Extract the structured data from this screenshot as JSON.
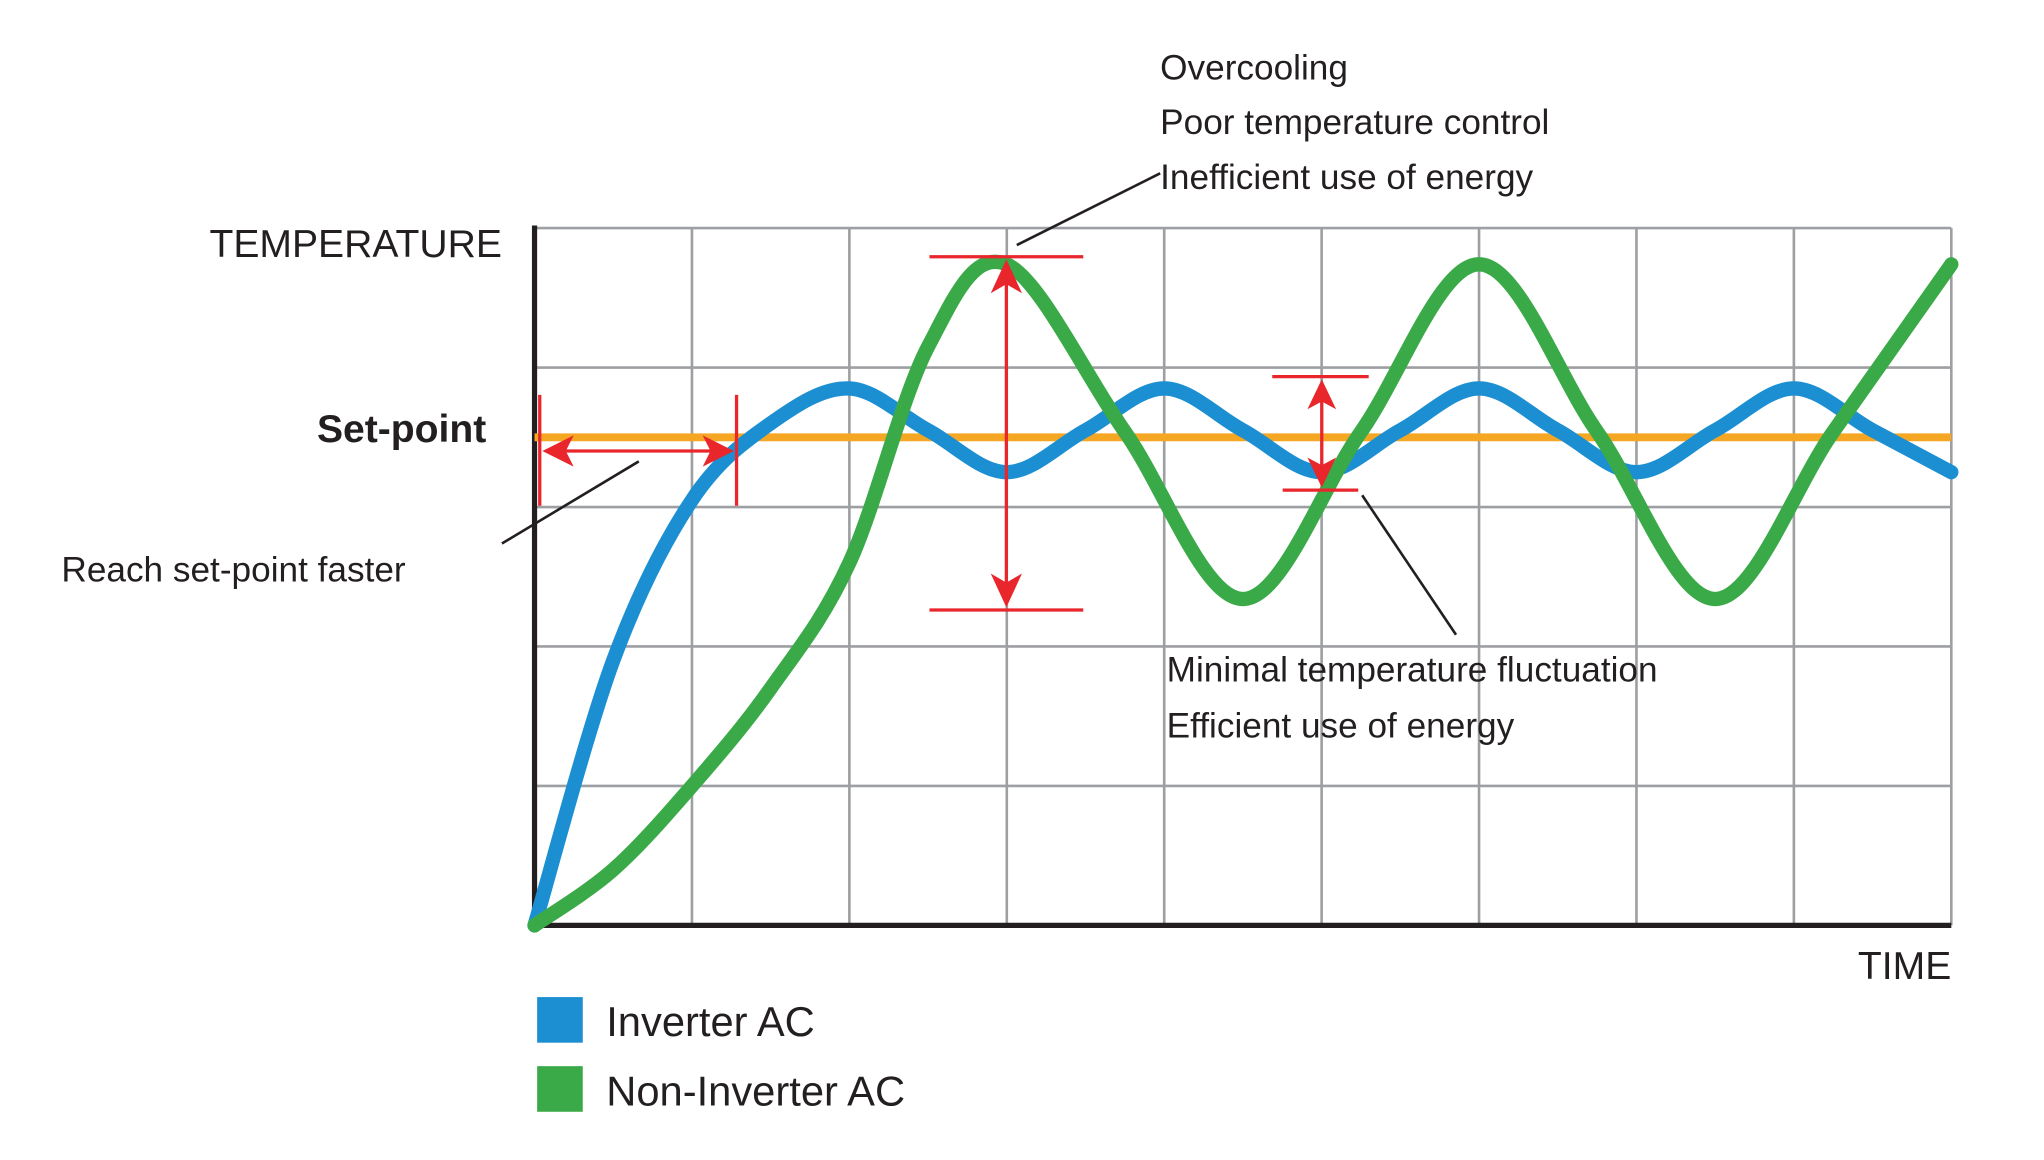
{
  "chart_data": {
    "type": "line",
    "title": "",
    "xlabel": "TIME",
    "ylabel": "TEMPERATURE",
    "xlim": [
      0,
      9
    ],
    "ylim": [
      0,
      5
    ],
    "grid": true,
    "setpoint": {
      "label": "Set-point",
      "value": 3.5,
      "color": "#f5a623"
    },
    "series": [
      {
        "name": "Inverter AC",
        "color": "#1b8fd2",
        "points": [
          [
            0,
            0
          ],
          [
            0.5,
            1.9
          ],
          [
            1,
            3.05
          ],
          [
            1.5,
            3.6
          ],
          [
            2,
            3.85
          ],
          [
            2.5,
            3.55
          ],
          [
            3,
            3.25
          ],
          [
            3.5,
            3.55
          ],
          [
            4,
            3.85
          ],
          [
            4.5,
            3.55
          ],
          [
            5,
            3.25
          ],
          [
            5.5,
            3.55
          ],
          [
            6,
            3.85
          ],
          [
            6.5,
            3.55
          ],
          [
            7,
            3.25
          ],
          [
            7.5,
            3.55
          ],
          [
            8,
            3.85
          ],
          [
            8.5,
            3.55
          ],
          [
            9,
            3.25
          ]
        ]
      },
      {
        "name": "Non-Inverter AC",
        "color": "#3aaa48",
        "points": [
          [
            0,
            0
          ],
          [
            0.5,
            0.4
          ],
          [
            1,
            1.0
          ],
          [
            1.5,
            1.7
          ],
          [
            2,
            2.6
          ],
          [
            2.5,
            4.15
          ],
          [
            3,
            4.74
          ],
          [
            3.75,
            3.54
          ],
          [
            4.5,
            2.34
          ],
          [
            5.25,
            3.54
          ],
          [
            6,
            4.74
          ],
          [
            6.75,
            3.54
          ],
          [
            7.5,
            2.34
          ],
          [
            8.25,
            3.54
          ],
          [
            9,
            4.74
          ]
        ]
      }
    ],
    "annotations": [
      {
        "id": "overcooling",
        "lines": [
          "Overcooling",
          "Poor temperature control",
          "Inefficient use of energy"
        ]
      },
      {
        "id": "faster",
        "lines": [
          "Reach set-point faster"
        ]
      },
      {
        "id": "minimal",
        "lines": [
          "Minimal temperature fluctuation",
          "Efficient use of energy"
        ]
      }
    ],
    "legend": {
      "placement": "bottom-left"
    }
  },
  "marker_color": "#e8262b"
}
